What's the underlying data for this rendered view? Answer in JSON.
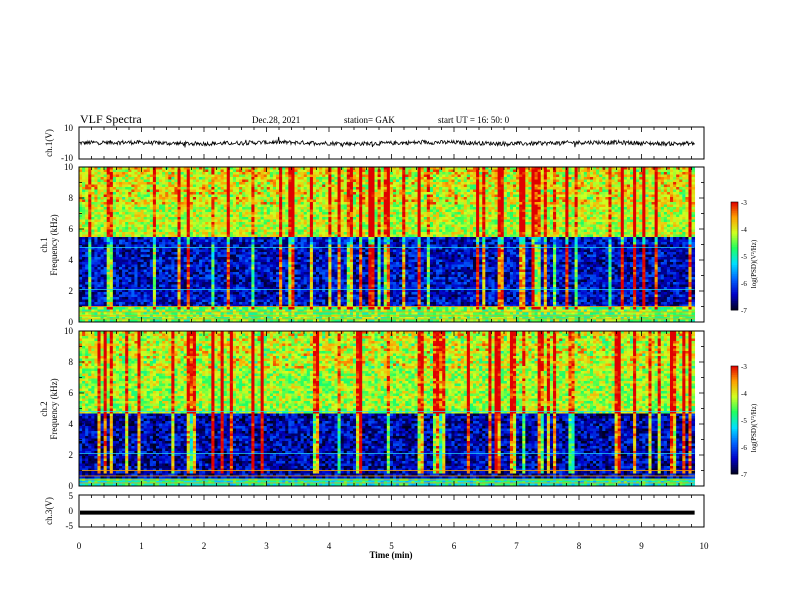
{
  "header": {
    "title": "VLF Spectra",
    "date": "Dec.28, 2021",
    "station": "station= GAK",
    "start": "start  UT =   16: 50: 0"
  },
  "chart_data": [
    {
      "type": "line",
      "id": "ch1-waveform",
      "ylabel": "ch.1(V)",
      "ylim": [
        -10,
        10
      ],
      "yticks": [
        "10",
        "-10"
      ],
      "xlim": [
        0,
        10
      ],
      "baseline": 0,
      "data_extent_min": 9.85,
      "note_values": "noisy trace fluctuating around 0 V with amplitude ~1-2 V"
    },
    {
      "type": "heatmap",
      "id": "ch1-spectrogram",
      "ylabel_line1": "ch.1",
      "ylabel_line2": "Frequency (kHz)",
      "ylim": [
        0,
        10
      ],
      "yticks": [
        "10",
        "8",
        "6",
        "4",
        "2",
        "0"
      ],
      "xlim": [
        0,
        10
      ],
      "data_extent_min": 9.85,
      "colorbar": {
        "label": "log(PSD)(V²/Hz)",
        "range": [
          -7,
          -3
        ],
        "ticks": [
          "-3",
          "-4",
          "-5",
          "-6",
          "-7"
        ]
      },
      "bands": [
        {
          "from_khz": 5.5,
          "to_khz": 10,
          "level": -4.2
        },
        {
          "from_khz": 1.0,
          "to_khz": 5.5,
          "level": -6.4
        },
        {
          "from_khz": 0.0,
          "to_khz": 1.0,
          "level": -4.5
        }
      ]
    },
    {
      "type": "heatmap",
      "id": "ch2-spectrogram",
      "ylabel_line1": "ch.2",
      "ylabel_line2": "Frequency (kHz)",
      "ylim": [
        0,
        10
      ],
      "yticks": [
        "10",
        "8",
        "6",
        "4",
        "2",
        "0"
      ],
      "xlim": [
        0,
        10
      ],
      "data_extent_min": 9.85,
      "colorbar": {
        "label": "log(PSD)(V²/Hz)",
        "range": [
          -7,
          -3
        ],
        "ticks": [
          "-3",
          "-4",
          "-5",
          "-6",
          "-7"
        ]
      },
      "bands": [
        {
          "from_khz": 4.7,
          "to_khz": 10,
          "level": -4.3
        },
        {
          "from_khz": 0.5,
          "to_khz": 4.7,
          "level": -6.5
        },
        {
          "from_khz": 0.0,
          "to_khz": 0.5,
          "level": -5.0
        }
      ]
    },
    {
      "type": "line",
      "id": "ch3-waveform",
      "ylabel": "ch.3(V)",
      "ylim": [
        -5,
        5
      ],
      "yticks": [
        "5",
        "0",
        "-5"
      ],
      "xlim": [
        0,
        10
      ],
      "constant_value": -0.5,
      "data_extent_min": 9.85
    }
  ],
  "xaxis": {
    "label": "Time (min)",
    "ticks": [
      "0",
      "1",
      "2",
      "3",
      "4",
      "5",
      "6",
      "7",
      "8",
      "9",
      "10"
    ]
  },
  "colors": {
    "frame": "#000000",
    "trace": "#000000",
    "colormap": [
      "#000020",
      "#0000c8",
      "#0064ff",
      "#00e0ff",
      "#20ff60",
      "#d0ff20",
      "#ffa000",
      "#e00000",
      "#ffffff"
    ]
  }
}
